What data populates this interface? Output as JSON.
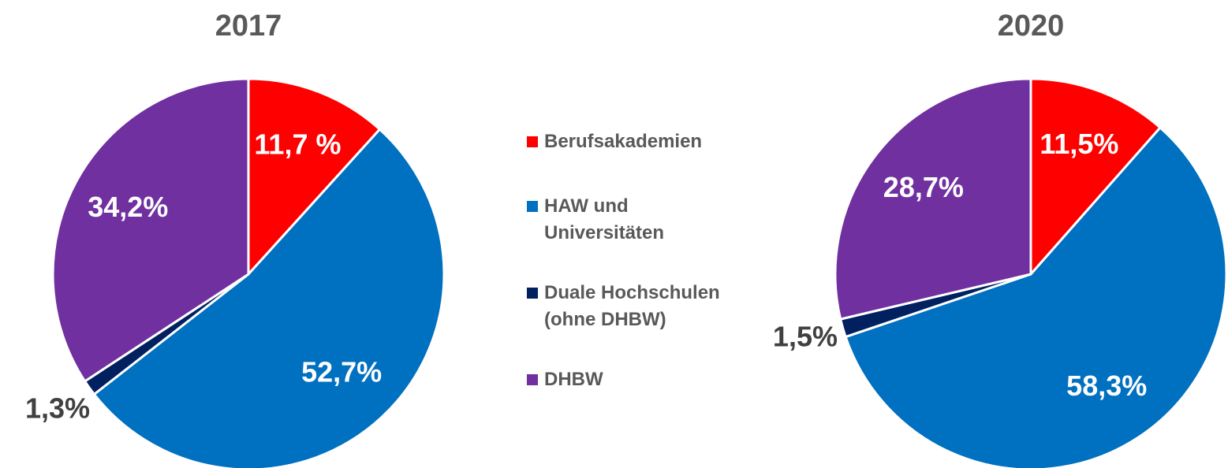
{
  "legend": {
    "names": [
      "Berufsakademien",
      "HAW und Universitäten",
      "Duale Hochschulen (ohne DHBW)",
      "DHBW"
    ],
    "colors": [
      "#ff0000",
      "#0070c0",
      "#002060",
      "#7030a0"
    ]
  },
  "chart_data": [
    {
      "type": "pie",
      "title": "2017",
      "values": [
        11.7,
        52.7,
        1.3,
        34.2
      ],
      "value_labels": [
        "11,7 %",
        "52,7%",
        "1,3%",
        "34,2%"
      ]
    },
    {
      "type": "pie",
      "title": "2020",
      "values": [
        11.5,
        58.3,
        1.5,
        28.7
      ],
      "value_labels": [
        "11,5%",
        "58,3%",
        "1,5%",
        "28,7%"
      ]
    }
  ]
}
